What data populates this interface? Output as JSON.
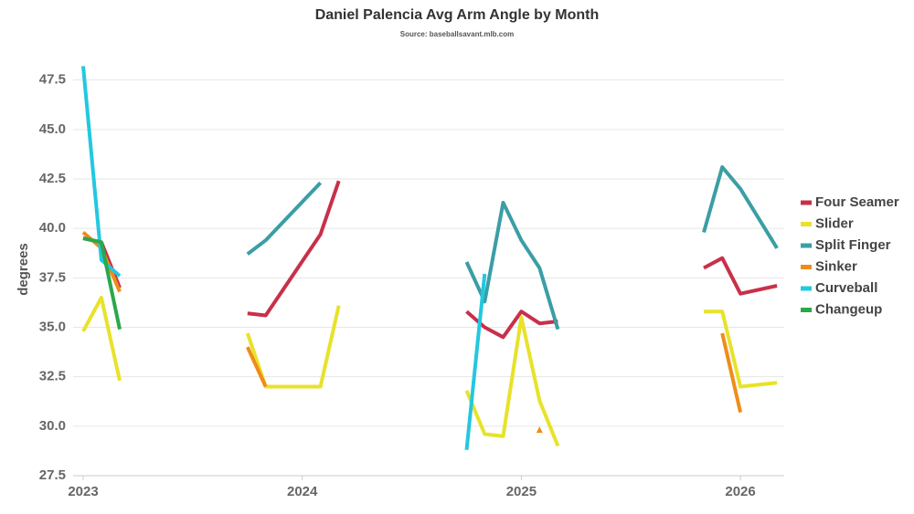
{
  "chart_data": {
    "type": "line",
    "title": "Daniel Palencia Avg Arm Angle by Month",
    "subtitle": "Source: baseballsavant.mlb.com",
    "y_label": "degrees",
    "x": [
      2023.0,
      2023.083,
      2023.167,
      2023.75,
      2023.833,
      2024.083,
      2024.167,
      2024.75,
      2024.833,
      2024.917,
      2025.0,
      2025.083,
      2025.167,
      2025.833,
      2025.917,
      2026.0,
      2026.167
    ],
    "xlim": [
      2023,
      2026.2
    ],
    "xticks": [
      2023,
      2024,
      2025,
      2026
    ],
    "ylim": [
      27.5,
      48.5
    ],
    "yticks": [
      27.5,
      {
        "value": 30,
        "label": "30.0"
      },
      32.5,
      {
        "value": 35,
        "label": "35.0"
      },
      37.5,
      {
        "value": 40,
        "label": "40.0"
      },
      42.5,
      {
        "value": 45,
        "label": "45.0"
      },
      47.5
    ],
    "grid": true,
    "legend": "right",
    "series": [
      {
        "name": "Four Seamer",
        "color": "#c8304a",
        "values": [
          39.5,
          39.3,
          37.0,
          35.7,
          35.6,
          39.7,
          42.4,
          35.8,
          35.0,
          34.5,
          35.8,
          35.2,
          35.3,
          38.0,
          38.5,
          36.7,
          37.1
        ]
      },
      {
        "name": "Slider",
        "color": "#e8e22a",
        "values": [
          34.8,
          36.5,
          32.3,
          34.7,
          32.0,
          32.0,
          36.1,
          31.8,
          29.6,
          29.5,
          35.5,
          31.3,
          29.0,
          35.8,
          35.8,
          32.0,
          32.2
        ]
      },
      {
        "name": "Split Finger",
        "color": "#3a9ea5",
        "values": [
          null,
          null,
          null,
          38.7,
          39.4,
          42.3,
          null,
          38.3,
          36.3,
          41.3,
          39.4,
          38.0,
          34.9,
          39.8,
          43.1,
          42.0,
          39.0
        ]
      },
      {
        "name": "Sinker",
        "color": "#f08c1a",
        "values": [
          39.8,
          39.0,
          36.8,
          34.0,
          32.0,
          null,
          null,
          null,
          null,
          null,
          null,
          29.8,
          null,
          null,
          34.7,
          30.7,
          null
        ]
      },
      {
        "name": "Curveball",
        "color": "#22c8e0",
        "values": [
          48.2,
          38.4,
          37.6,
          null,
          null,
          null,
          null,
          28.8,
          37.7,
          null,
          null,
          null,
          null,
          null,
          null,
          null,
          null
        ]
      },
      {
        "name": "Changeup",
        "color": "#2aa84a",
        "values": [
          39.5,
          39.3,
          34.9,
          null,
          null,
          null,
          null,
          null,
          null,
          null,
          null,
          null,
          null,
          null,
          null,
          null,
          null
        ]
      }
    ]
  }
}
